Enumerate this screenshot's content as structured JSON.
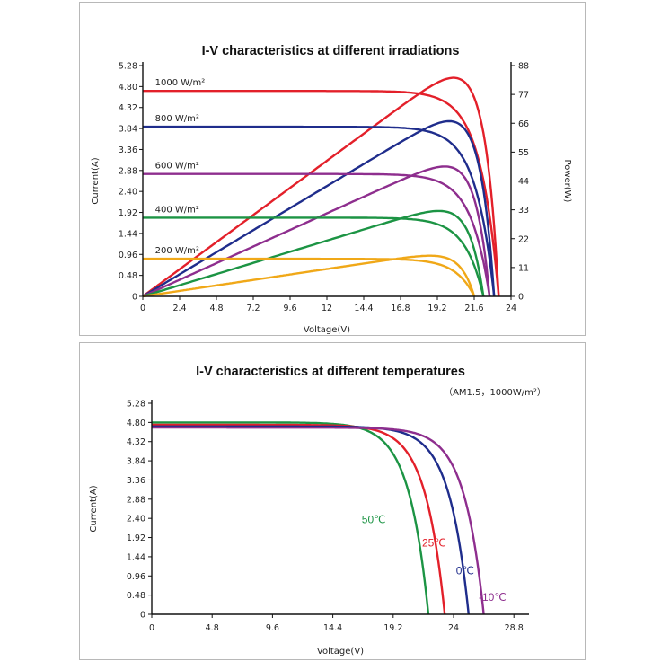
{
  "chart_data": [
    {
      "type": "line",
      "title": "I-V characteristics at different irradiations",
      "xlabel": "Voltage(V)",
      "ylabel": "Current(A)",
      "y2label": "Power(W)",
      "xlim": [
        0,
        24
      ],
      "ylim": [
        0,
        5.28
      ],
      "y2lim": [
        0,
        88
      ],
      "x_ticks": [
        "0",
        "2.4",
        "4.8",
        "7.2",
        "9.6",
        "12",
        "14.4",
        "16.8",
        "19.2",
        "21.6",
        "24"
      ],
      "y_ticks": [
        "0",
        "0.48",
        "0.96",
        "1.44",
        "1.92",
        "2.40",
        "2.88",
        "3.36",
        "3.84",
        "4.32",
        "4.80",
        "5.28"
      ],
      "y2_ticks": [
        "0",
        "11",
        "22",
        "33",
        "44",
        "55",
        "66",
        "77",
        "88"
      ],
      "legend": "inline",
      "grid": false,
      "series": [
        {
          "name": "1000 W/m²",
          "color": "#e3202a",
          "isc": 4.7,
          "voc": 23.2,
          "pmax": 81.5,
          "vmp": 19.2
        },
        {
          "name": "800 W/m²",
          "color": "#1f2d8c",
          "isc": 3.88,
          "voc": 22.9,
          "pmax": 65.5,
          "vmp": 19.0
        },
        {
          "name": "600 W/m²",
          "color": "#8e2e8e",
          "isc": 2.8,
          "voc": 22.6,
          "pmax": 49.0,
          "vmp": 19.0
        },
        {
          "name": "400 W/m²",
          "color": "#1c9444",
          "isc": 1.8,
          "voc": 22.2,
          "pmax": 32.5,
          "vmp": 19.0
        },
        {
          "name": "200 W/m²",
          "color": "#f0a818",
          "isc": 0.86,
          "voc": 21.6,
          "pmax": 15.5,
          "vmp": 18.8
        }
      ]
    },
    {
      "type": "line",
      "title": "I-V characteristics at different temperatures",
      "subtitle": "（AM1.5，1000W/m²）",
      "xlabel": "Voltage(V)",
      "ylabel": "Current(A)",
      "xlim": [
        0,
        30
      ],
      "ylim": [
        0,
        5.28
      ],
      "x_ticks": [
        "0",
        "4.8",
        "9.6",
        "14.4",
        "19.2",
        "24",
        "28.8"
      ],
      "y_ticks": [
        "0",
        "0.48",
        "0.96",
        "1.44",
        "1.92",
        "2.40",
        "2.88",
        "3.36",
        "3.84",
        "4.32",
        "4.80",
        "5.28"
      ],
      "legend": "inline",
      "grid": false,
      "series": [
        {
          "name": "50℃",
          "color": "#1c9444",
          "isc": 4.8,
          "voc": 22.0
        },
        {
          "name": "25℃",
          "color": "#e3202a",
          "isc": 4.74,
          "voc": 23.3
        },
        {
          "name": "0℃",
          "color": "#1f2d8c",
          "isc": 4.7,
          "voc": 25.2
        },
        {
          "name": "-10℃",
          "color": "#8e2e8e",
          "isc": 4.67,
          "voc": 26.4
        }
      ]
    }
  ]
}
